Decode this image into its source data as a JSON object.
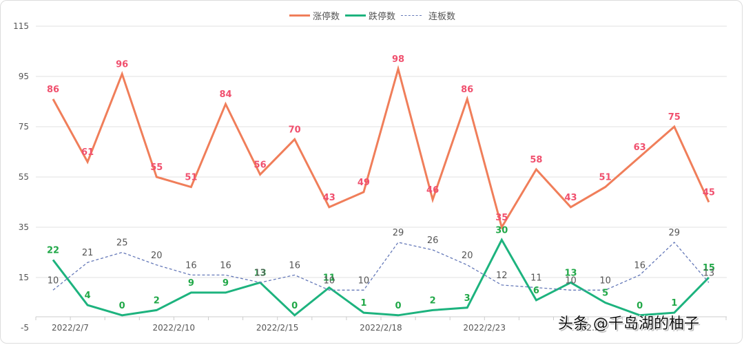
{
  "chart_data": {
    "type": "line",
    "title": "",
    "xlabel": "",
    "ylabel": "",
    "ylim": [
      -5,
      115
    ],
    "yticks": [
      -5,
      15,
      35,
      55,
      75,
      95,
      115
    ],
    "grid": true,
    "legend_position": "top-center",
    "x_tick_labels": [
      "2022/2/7",
      "2022/2/10",
      "2022/2/15",
      "2022/2/18",
      "2022/2/23",
      "202…"
    ],
    "x_tick_label_indices": [
      0,
      3,
      6,
      9,
      12,
      15
    ],
    "num_points": 20,
    "series": [
      {
        "name": "涨停数",
        "color": "#f07e5a",
        "label_color": "#f0506e",
        "style": "solid",
        "values": [
          86,
          61,
          96,
          55,
          51,
          84,
          56,
          70,
          43,
          49,
          98,
          46,
          86,
          35,
          58,
          43,
          51,
          63,
          75,
          45
        ]
      },
      {
        "name": "跌停数",
        "color": "#1db37e",
        "label_color": "#21a848",
        "style": "solid",
        "values": [
          22,
          4,
          0,
          2,
          9,
          9,
          13,
          0,
          11,
          1,
          0,
          2,
          3,
          30,
          6,
          13,
          5,
          0,
          1,
          15
        ]
      },
      {
        "name": "连板数",
        "color": "#6478b8",
        "label_color": "#555555",
        "style": "dashed",
        "values": [
          10,
          21,
          25,
          20,
          16,
          16,
          13,
          16,
          10,
          10,
          29,
          26,
          20,
          12,
          11,
          10,
          10,
          16,
          29,
          13
        ]
      }
    ]
  },
  "legend": {
    "items": [
      {
        "label": "涨停数",
        "color": "#f07e5a"
      },
      {
        "label": "跌停数",
        "color": "#1db37e"
      },
      {
        "label": "连板数",
        "color": "#6478b8"
      }
    ]
  },
  "watermark": "头条 @千岛湖的柚子"
}
